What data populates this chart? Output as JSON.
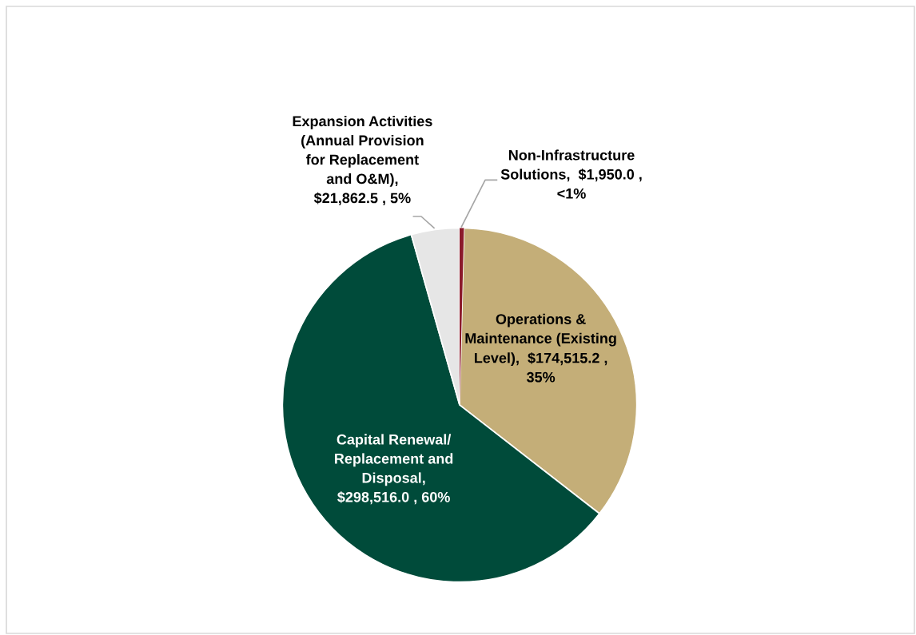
{
  "chart_data": {
    "type": "pie",
    "categories": [
      "Non-Infrastructure\nSolutions",
      "Operations &\nMaintenance (Existing\nLevel)",
      "Capital Renewal/\nReplacement and\nDisposal",
      "Expansion Activities\n(Annual Provision\nfor Replacement\nand O&M)"
    ],
    "values": [
      1950.0,
      174515.2,
      298516.0,
      21862.5
    ],
    "colors": [
      "#8b1a2b",
      "#c4ae78",
      "#004b3a",
      "#e6e6e6"
    ],
    "value_labels": [
      ",  $1,950.0 ,\n<1%",
      ",  $174,515.2 ,\n35%",
      ",\n$298,516.0 , 60%",
      ",\n$21,862.5 , 5%"
    ],
    "legend": false
  }
}
